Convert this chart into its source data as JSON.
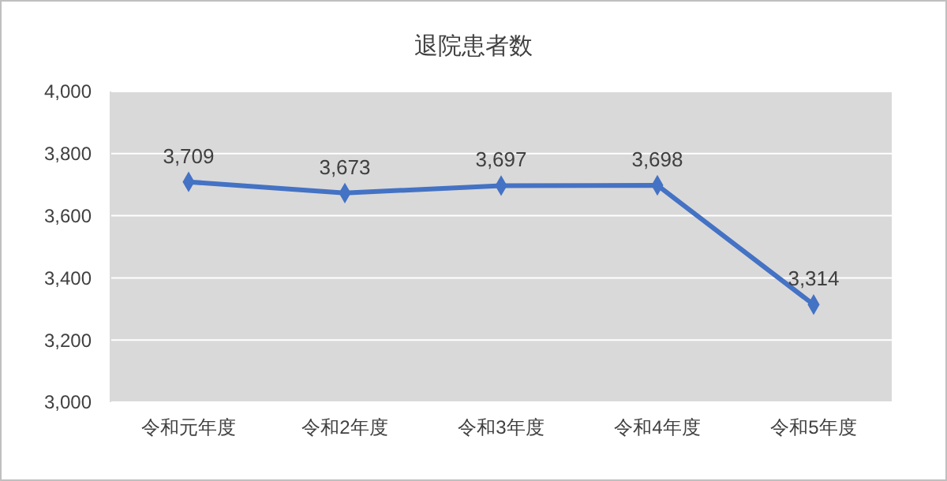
{
  "chart_data": {
    "type": "line",
    "title": "退院患者数",
    "categories": [
      "令和元年度",
      "令和2年度",
      "令和3年度",
      "令和4年度",
      "令和5年度"
    ],
    "series": [
      {
        "color": "#4472c4",
        "values": [
          3709,
          3673,
          3697,
          3698,
          3314
        ],
        "value_labels": [
          "3,709",
          "3,673",
          "3,697",
          "3,698",
          "3,314"
        ]
      }
    ],
    "ylim": [
      3000,
      4000
    ],
    "yticks": [
      {
        "value": 3000,
        "label": "3,000"
      },
      {
        "value": 3200,
        "label": "3,200"
      },
      {
        "value": 3400,
        "label": "3,400"
      },
      {
        "value": 3600,
        "label": "3,600"
      },
      {
        "value": 3800,
        "label": "3,800"
      },
      {
        "value": 4000,
        "label": "4,000"
      }
    ],
    "grid": "y",
    "marker": "diamond",
    "line_style": "solid"
  }
}
